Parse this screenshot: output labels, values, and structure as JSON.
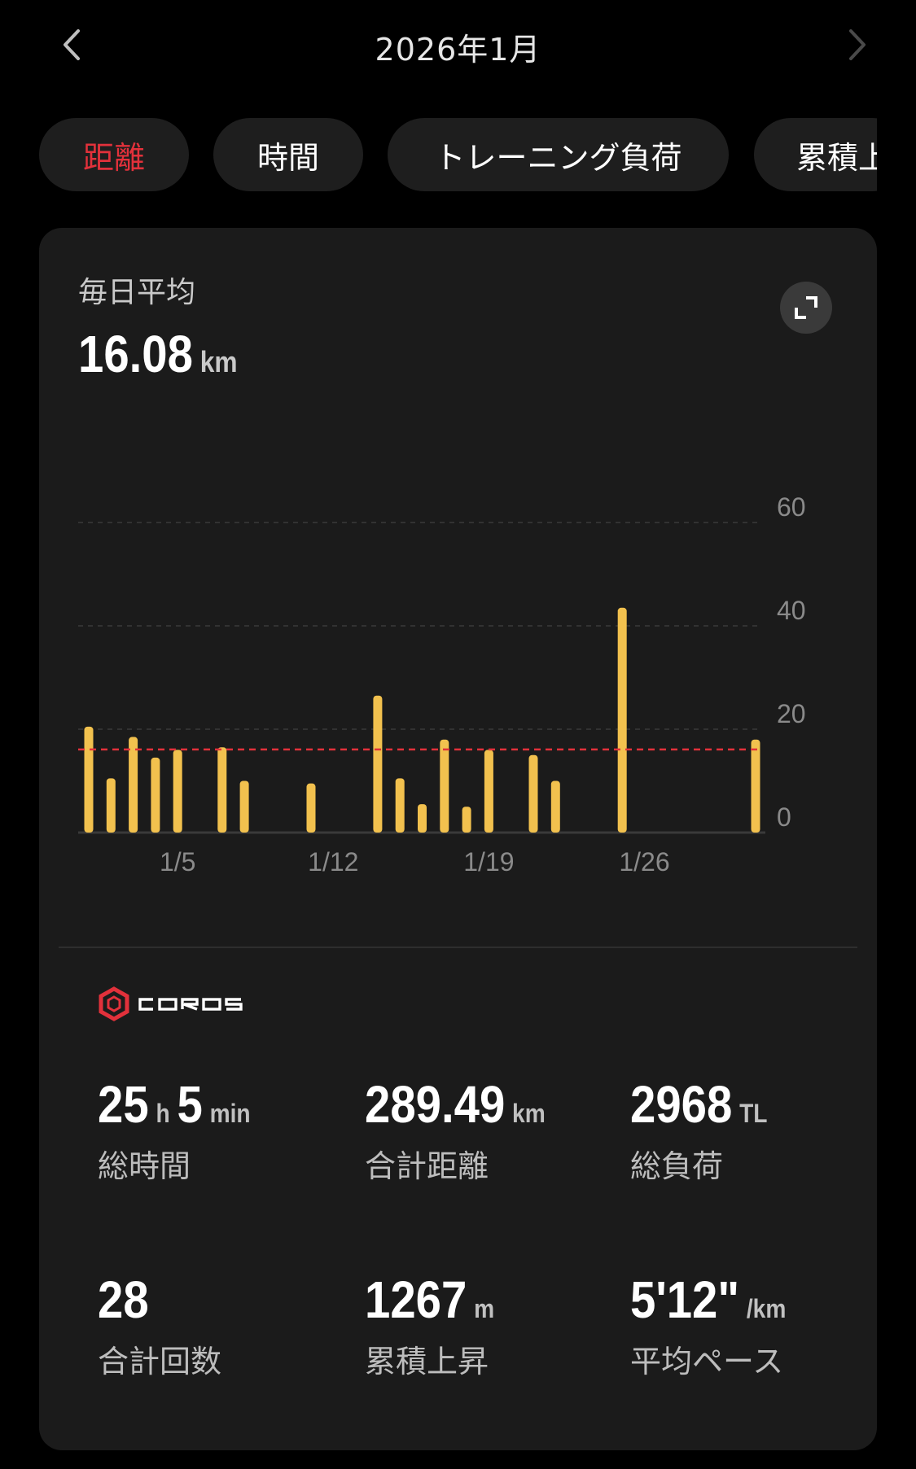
{
  "header": {
    "title": "2026年1月",
    "prev_icon": "chevron-left-icon",
    "next_icon": "chevron-right-icon"
  },
  "tabs": [
    {
      "label": "距離",
      "active": true
    },
    {
      "label": "時間",
      "active": false
    },
    {
      "label": "トレーニング負荷",
      "active": false
    },
    {
      "label": "累積上",
      "active": false
    }
  ],
  "summary": {
    "avg_label": "毎日平均",
    "avg_value": "16.08",
    "avg_unit": "km",
    "expand_icon": "expand-icon"
  },
  "chart_data": {
    "type": "bar",
    "title": "",
    "xlabel": "",
    "ylabel": "",
    "x_ticks": [
      "1/5",
      "1/12",
      "1/19",
      "1/26"
    ],
    "y_ticks": [
      "0",
      "20",
      "40",
      "60"
    ],
    "ylim": [
      0,
      60
    ],
    "grid": true,
    "y_axis_side": "right",
    "average_line": 16.08,
    "bar_color": "#f2c14e",
    "average_color": "#e2313b",
    "days": [
      1,
      2,
      3,
      4,
      5,
      6,
      7,
      8,
      9,
      10,
      11,
      12,
      13,
      14,
      15,
      16,
      17,
      18,
      19,
      20,
      21,
      22,
      23,
      24,
      25,
      26,
      27,
      28,
      29,
      30,
      31
    ],
    "values": [
      20.5,
      10.5,
      18.5,
      14.5,
      16.0,
      0,
      16.5,
      10.0,
      0,
      0,
      9.5,
      0,
      0,
      26.5,
      10.5,
      5.5,
      18.0,
      5.0,
      16.0,
      0,
      15.0,
      10.0,
      0,
      0,
      43.5,
      0,
      0,
      0,
      0,
      0,
      18.0
    ]
  },
  "brand": {
    "logo_text": "COROS",
    "logo_color": "#e2313b"
  },
  "stats": [
    {
      "value": "25",
      "unit": "h",
      "value2": "5",
      "unit2": "min",
      "label": "総時間"
    },
    {
      "value": "289.49",
      "unit": "km",
      "label": "合計距離"
    },
    {
      "value": "2968",
      "unit": "TL",
      "label": "総負荷"
    },
    {
      "value": "28",
      "unit": "",
      "label": "合計回数"
    },
    {
      "value": "1267",
      "unit": "m",
      "label": "累積上昇"
    },
    {
      "value": "5'12\"",
      "unit": "/km",
      "label": "平均ペース"
    }
  ]
}
